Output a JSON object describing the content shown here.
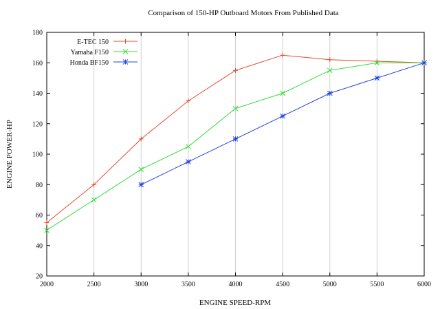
{
  "chart_data": {
    "type": "line",
    "title": "Comparison of 150-HP Outboard Motors From Published Data",
    "xlabel": "ENGINE SPEED-RPM",
    "ylabel": "ENGINE POWER-HP",
    "xlim": [
      2000,
      6000
    ],
    "ylim": [
      20,
      180
    ],
    "xticks": [
      2000,
      2500,
      3000,
      3500,
      4000,
      4500,
      5000,
      5500,
      6000
    ],
    "yticks": [
      20,
      40,
      60,
      80,
      100,
      120,
      140,
      160,
      180
    ],
    "grid": "vertical",
    "legend_position": "top-left",
    "series": [
      {
        "name": "E-TEC 150",
        "color": "#e8492a",
        "marker": "plus",
        "x": [
          2000,
          2500,
          3000,
          3500,
          4000,
          4500,
          5000,
          5500,
          6000
        ],
        "y": [
          55,
          80,
          110,
          135,
          155,
          165,
          162,
          161,
          160
        ]
      },
      {
        "name": "Yamaha F150",
        "color": "#33dd33",
        "marker": "cross",
        "x": [
          2000,
          2500,
          3000,
          3500,
          4000,
          4500,
          5000,
          5500,
          6000
        ],
        "y": [
          50,
          70,
          90,
          105,
          130,
          140,
          155,
          160,
          160
        ]
      },
      {
        "name": "Honda BF150",
        "color": "#2244dd",
        "marker": "star",
        "x": [
          3000,
          3500,
          4000,
          4500,
          5000,
          5500,
          6000
        ],
        "y": [
          80,
          95,
          110,
          125,
          140,
          150,
          160
        ]
      }
    ]
  }
}
